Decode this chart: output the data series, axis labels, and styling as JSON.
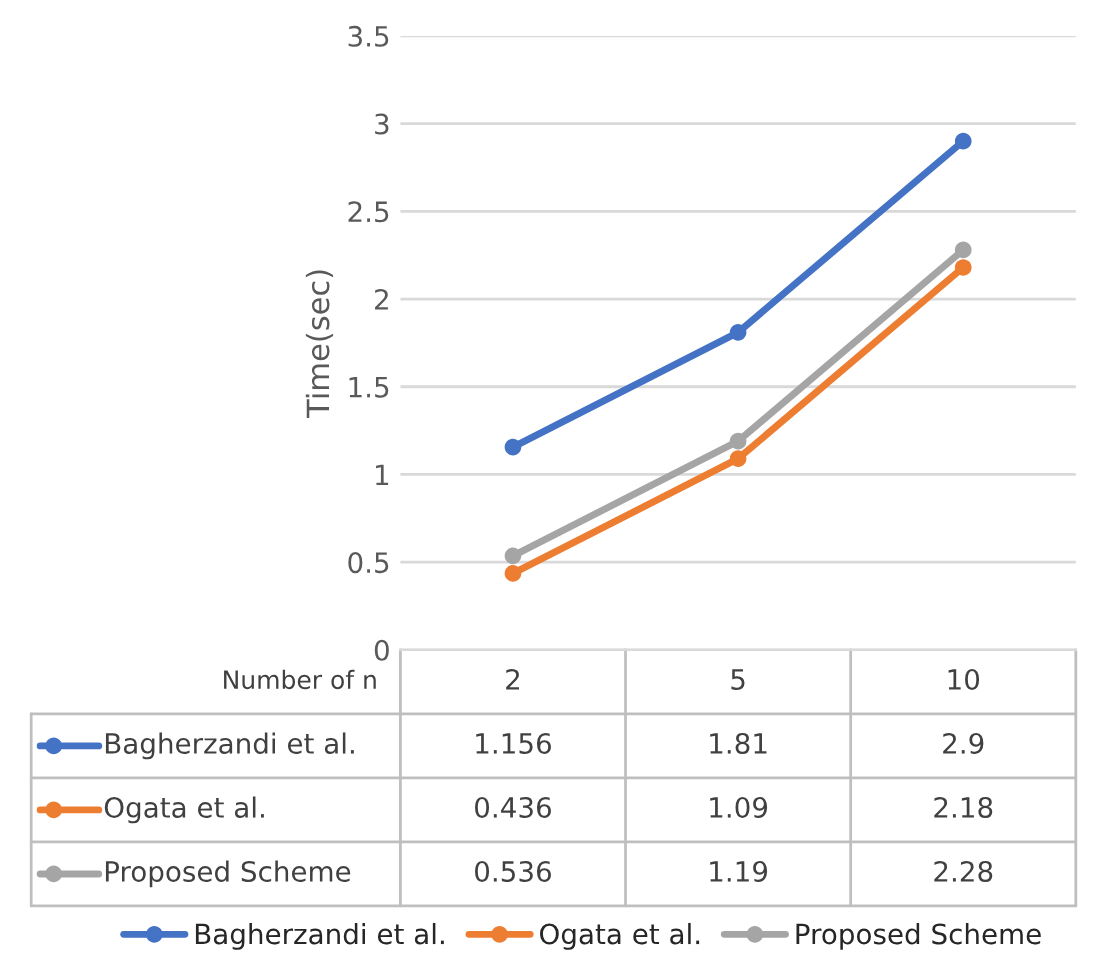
{
  "chart_data": {
    "type": "line",
    "ylabel": "Time(sec)",
    "xlabel": "Number of n",
    "categories": [
      "2",
      "5",
      "10"
    ],
    "series": [
      {
        "name": "Bagherzandi et al.",
        "color": "#4472c4",
        "values": [
          1.156,
          1.81,
          2.9
        ]
      },
      {
        "name": "Ogata et al.",
        "color": "#ed7d31",
        "values": [
          0.436,
          1.09,
          2.18
        ]
      },
      {
        "name": "Proposed Scheme",
        "color": "#a5a5a5",
        "values": [
          0.536,
          1.19,
          2.28
        ]
      }
    ],
    "ylim": [
      0,
      3.5
    ],
    "yticks": [
      0,
      0.5,
      1,
      1.5,
      2,
      2.5,
      3,
      3.5
    ],
    "grid": "y",
    "legend": "bottom",
    "marker": "circle",
    "line_style": "solid",
    "data_labels": true
  }
}
